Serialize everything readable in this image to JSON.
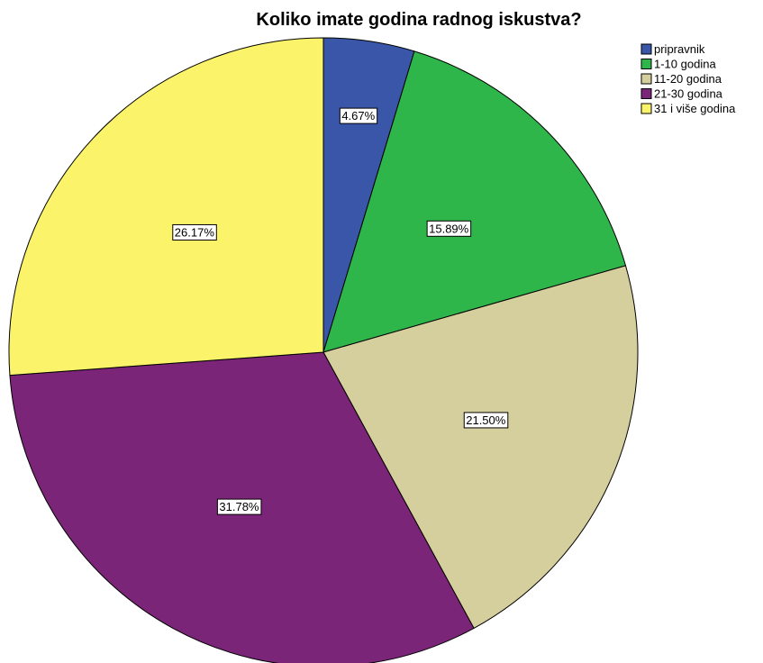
{
  "chart_data": {
    "type": "pie",
    "title": "Koliko imate godina radnog iskustva?",
    "legend_position": "top-right",
    "slices": [
      {
        "label": "pripravnik",
        "value": 4.67,
        "value_label": "4.67%",
        "color": "#3a56a8"
      },
      {
        "label": "1-10 godina",
        "value": 15.89,
        "value_label": "15.89%",
        "color": "#2fb64a"
      },
      {
        "label": "11-20 godina",
        "value": 21.5,
        "value_label": "21.50%",
        "color": "#d5cf9d"
      },
      {
        "label": "21-30 godina",
        "value": 31.78,
        "value_label": "31.78%",
        "color": "#7b2578"
      },
      {
        "label": "31 i više godina",
        "value": 26.17,
        "value_label": "26.17%",
        "color": "#fbf46a"
      }
    ]
  }
}
